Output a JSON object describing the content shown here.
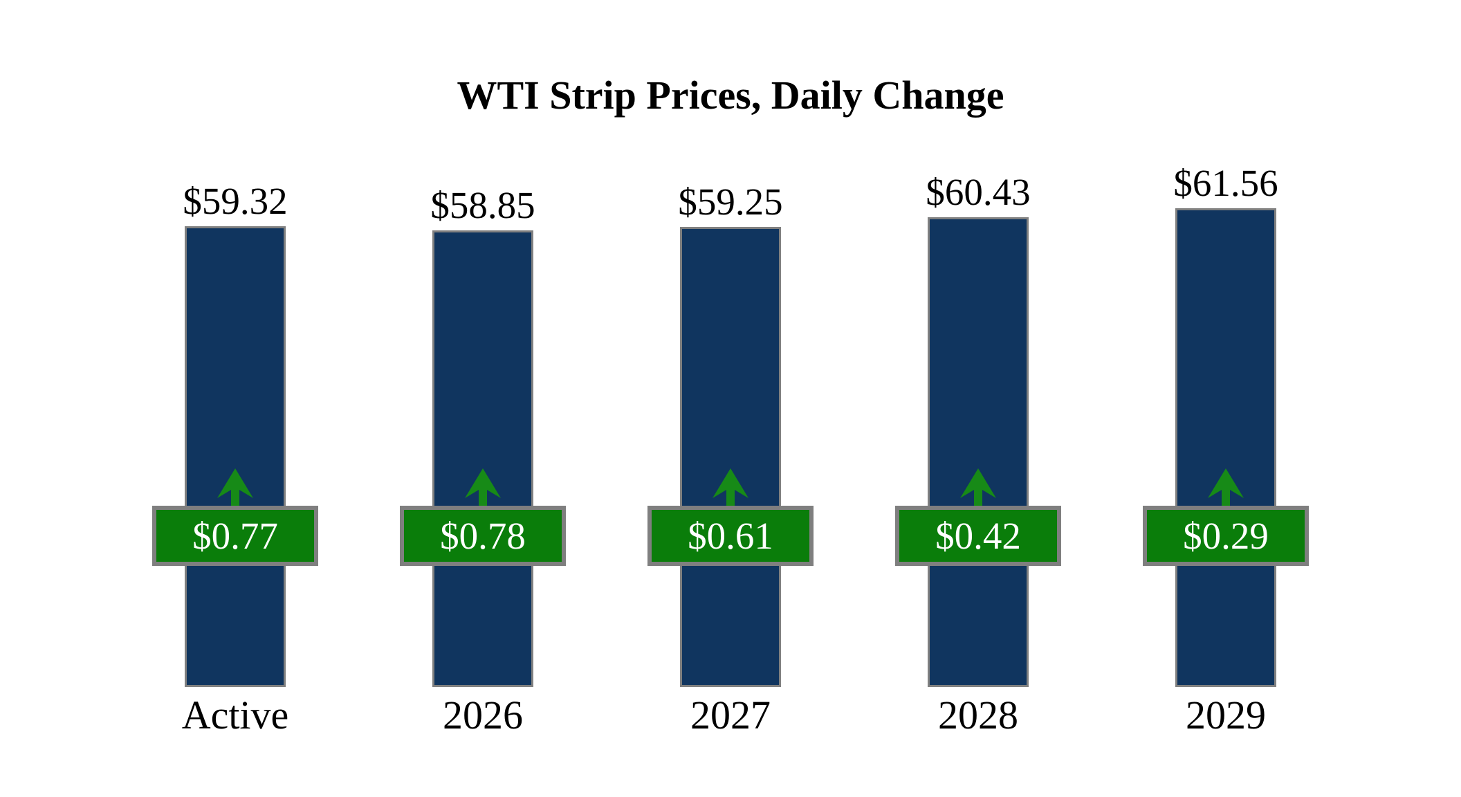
{
  "title": "WTI Strip Prices, Daily Change",
  "colors": {
    "background": "#ffffff",
    "bar_fill": "#10355f",
    "bar_border": "#808080",
    "badge_fill": "#0a7d0a",
    "badge_border": "#7f7f7f",
    "arrow_green": "#178a17",
    "label_text": "#000000",
    "badge_text": "#ffffff"
  },
  "chart_data": {
    "type": "bar",
    "title": "WTI Strip Prices, Daily Change",
    "categories": [
      "Active",
      "2026",
      "2027",
      "2028",
      "2029"
    ],
    "series": [
      {
        "name": "WTI strip price (USD/bbl)",
        "values": [
          59.32,
          58.85,
          59.25,
          60.43,
          61.56
        ]
      },
      {
        "name": "Daily change (USD)",
        "values": [
          0.77,
          0.78,
          0.61,
          0.42,
          0.29
        ]
      }
    ],
    "value_labels": [
      "$59.32",
      "$58.85",
      "$59.25",
      "$60.43",
      "$61.56"
    ],
    "change_labels": [
      "$0.77",
      "$0.78",
      "$0.61",
      "$0.42",
      "$0.29"
    ],
    "change_direction": "up",
    "xlabel": "",
    "ylabel": "",
    "axis_lines": false,
    "grid": false,
    "legend_position": "none",
    "notes": "Each column shows strip price above a navy bar; green boxed badge on the bar shows the daily change with a green up arrow."
  }
}
